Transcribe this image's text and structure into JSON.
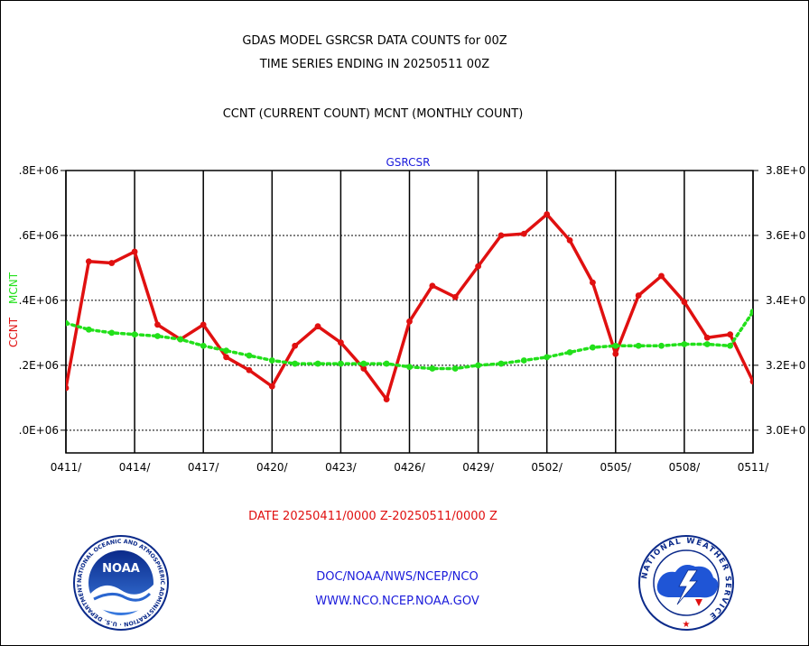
{
  "header": {
    "title_line1": "GDAS MODEL GSRCSR DATA COUNTS for 00Z",
    "title_line2": "TIME SERIES ENDING IN 20250511 00Z",
    "subtitle": "CCNT (CURRENT COUNT) MCNT (MONTHLY COUNT)"
  },
  "date_range": "DATE 20250411/0000 Z-20250511/0000 Z",
  "footer": {
    "line1": "DOC/NOAA/NWS/NCEP/NCO",
    "line2": "WWW.NCO.NCEP.NOAA.GOV"
  },
  "logos": {
    "noaa_text": "NOAA",
    "noaa_ring": "NATIONAL OCEANIC AND ATMOSPHERIC ADMINISTRATION · U.S. DEPARTMENT OF COMMERCE",
    "nws_ring": "NATIONAL WEATHER SERVICE"
  },
  "colors": {
    "ccnt": "#e01010",
    "mcnt": "#22e01a",
    "date_text": "#e01010",
    "footer_text": "#1a1adb",
    "plot_title": "#1a1adb"
  },
  "chart_data": {
    "type": "line",
    "title": "GSRCSR",
    "x": [
      "0411",
      "0412",
      "0413",
      "0414",
      "0415",
      "0416",
      "0417",
      "0418",
      "0419",
      "0420",
      "0421",
      "0422",
      "0423",
      "0424",
      "0425",
      "0426",
      "0427",
      "0428",
      "0429",
      "0430",
      "0501",
      "0502",
      "0503",
      "0504",
      "0505",
      "0506",
      "0507",
      "0508",
      "0509",
      "0510",
      "0511"
    ],
    "x_tick_labels": [
      "0411/",
      "0414/",
      "0417/",
      "0420/",
      "0423/",
      "0426/",
      "0429/",
      "0502/",
      "0505/",
      "0508/",
      "0511/"
    ],
    "x_tick_every": 3,
    "left_axis": {
      "label_parts": [
        "CCNT",
        "MCNT"
      ],
      "ylim": [
        0.93,
        1.8
      ],
      "ticks": [
        1.0,
        1.2,
        1.4,
        1.6,
        1.8
      ],
      "tick_labels": [
        ".0E+06",
        ".2E+06",
        ".4E+06",
        ".6E+06",
        ".8E+06"
      ]
    },
    "right_axis": {
      "ylim": [
        2.93,
        3.8
      ],
      "ticks": [
        3.0,
        3.2,
        3.4,
        3.6,
        3.8
      ],
      "tick_labels": [
        "3.0E+0",
        "3.2E+0",
        "3.4E+0",
        "3.6E+0",
        "3.8E+0"
      ]
    },
    "grid": true,
    "series": [
      {
        "name": "CCNT",
        "axis": "left",
        "style": "solid",
        "values": [
          1.13,
          1.52,
          1.515,
          1.55,
          1.325,
          1.28,
          1.325,
          1.225,
          1.185,
          1.135,
          1.26,
          1.32,
          1.27,
          1.19,
          1.095,
          1.335,
          1.445,
          1.41,
          1.505,
          1.6,
          1.605,
          1.665,
          1.585,
          1.455,
          1.235,
          1.415,
          1.475,
          1.395,
          1.285,
          1.295,
          1.15
        ]
      },
      {
        "name": "MCNT",
        "axis": "right",
        "style": "dotted",
        "values": [
          3.33,
          3.31,
          3.3,
          3.295,
          3.29,
          3.28,
          3.26,
          3.245,
          3.23,
          3.215,
          3.205,
          3.205,
          3.205,
          3.205,
          3.205,
          3.195,
          3.19,
          3.19,
          3.2,
          3.205,
          3.215,
          3.225,
          3.24,
          3.255,
          3.26,
          3.26,
          3.26,
          3.265,
          3.265,
          3.26,
          3.365
        ]
      }
    ]
  }
}
